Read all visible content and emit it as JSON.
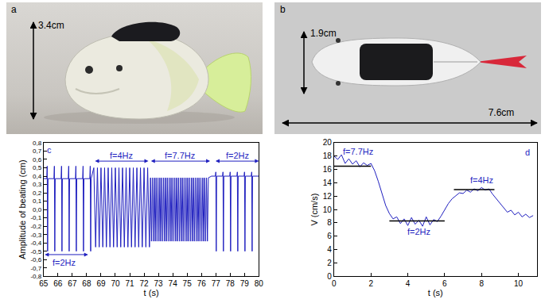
{
  "photos": {
    "a": {
      "label": "a",
      "height": "3.4cm"
    },
    "b": {
      "label": "b",
      "height": "1.9cm",
      "length": "7.6cm"
    }
  },
  "chart_data": [
    {
      "type": "line",
      "xlabel": "t (s)",
      "ylabel": "Amplitude of beating (cm)",
      "color": "#1f1fbf",
      "x": [
        65.0,
        65.22,
        65.25,
        65.28,
        65.31,
        65.72,
        65.75,
        65.78,
        65.81,
        66.22,
        66.25,
        66.28,
        66.31,
        66.72,
        66.75,
        66.78,
        66.81,
        67.22,
        67.25,
        67.28,
        67.31,
        67.72,
        67.75,
        67.78,
        67.81,
        68.22,
        68.25,
        68.28,
        68.31,
        68.5,
        68.625,
        68.75,
        68.875,
        69.0,
        69.125,
        69.25,
        69.375,
        69.5,
        69.625,
        69.75,
        69.875,
        70.0,
        70.125,
        70.25,
        70.375,
        70.5,
        70.625,
        70.75,
        70.875,
        71.0,
        71.125,
        71.25,
        71.375,
        71.5,
        71.625,
        71.75,
        71.875,
        72.0,
        72.125,
        72.25,
        72.375,
        72.45,
        72.515,
        72.58,
        72.645,
        72.71,
        72.775,
        72.84,
        72.905,
        72.97,
        73.035,
        73.1,
        73.165,
        73.23,
        73.295,
        73.36,
        73.425,
        73.49,
        73.555,
        73.62,
        73.685,
        73.75,
        73.815,
        73.88,
        73.945,
        74.01,
        74.075,
        74.14,
        74.205,
        74.27,
        74.335,
        74.4,
        74.465,
        74.53,
        74.595,
        74.66,
        74.725,
        74.79,
        74.855,
        74.92,
        74.985,
        75.05,
        75.115,
        75.18,
        75.245,
        75.31,
        75.375,
        75.44,
        75.505,
        75.57,
        75.635,
        75.7,
        75.765,
        75.83,
        75.895,
        75.96,
        76.025,
        76.09,
        76.155,
        76.22,
        76.285,
        76.35,
        76.415,
        76.48,
        76.7,
        76.97,
        77.0,
        77.03,
        77.06,
        77.47,
        77.5,
        77.53,
        77.56,
        77.97,
        78.0,
        78.03,
        78.06,
        78.47,
        78.5,
        78.53,
        78.56,
        78.97,
        79.0,
        79.03,
        79.06,
        79.47,
        79.5,
        79.53,
        79.56,
        80.0
      ],
      "values": [
        0.37,
        0.37,
        0.52,
        -0.5,
        0.37,
        0.37,
        0.52,
        -0.5,
        0.37,
        0.37,
        0.52,
        -0.5,
        0.37,
        0.37,
        0.52,
        -0.5,
        0.37,
        0.37,
        0.52,
        -0.5,
        0.37,
        0.37,
        0.52,
        -0.5,
        0.37,
        0.37,
        0.52,
        -0.5,
        0.37,
        0.5,
        -0.45,
        0.5,
        -0.45,
        0.5,
        -0.45,
        0.5,
        -0.45,
        0.5,
        -0.45,
        0.5,
        -0.45,
        0.5,
        -0.45,
        0.5,
        -0.45,
        0.5,
        -0.45,
        0.5,
        -0.45,
        0.5,
        -0.45,
        0.5,
        -0.45,
        0.5,
        -0.45,
        0.5,
        -0.45,
        0.5,
        -0.45,
        0.5,
        -0.45,
        0.38,
        -0.38,
        0.38,
        -0.38,
        0.38,
        -0.38,
        0.38,
        -0.38,
        0.38,
        -0.38,
        0.38,
        -0.38,
        0.38,
        -0.38,
        0.38,
        -0.38,
        0.38,
        -0.38,
        0.38,
        -0.38,
        0.38,
        -0.38,
        0.38,
        -0.38,
        0.38,
        -0.38,
        0.38,
        -0.38,
        0.38,
        -0.38,
        0.38,
        -0.38,
        0.38,
        -0.38,
        0.38,
        -0.38,
        0.38,
        -0.38,
        0.38,
        -0.38,
        0.38,
        -0.38,
        0.38,
        -0.38,
        0.38,
        -0.38,
        0.38,
        -0.38,
        0.38,
        -0.38,
        0.38,
        -0.38,
        0.38,
        -0.38,
        0.38,
        -0.38,
        0.38,
        -0.38,
        0.38,
        -0.38,
        0.38,
        -0.38,
        0.38,
        0.4,
        0.4,
        0.45,
        -0.5,
        0.4,
        0.4,
        0.45,
        -0.5,
        0.4,
        0.4,
        0.45,
        -0.5,
        0.4,
        0.4,
        0.45,
        -0.5,
        0.4,
        0.4,
        0.45,
        -0.5,
        0.4,
        0.4,
        0.45,
        -0.5,
        0.4,
        0.4
      ],
      "xlim": [
        65,
        80
      ],
      "xticks": [
        65,
        66,
        67,
        68,
        69,
        70,
        71,
        72,
        73,
        74,
        75,
        76,
        77,
        78,
        79,
        80
      ],
      "ylim": [
        -0.8,
        0.8
      ],
      "yticks": [
        {
          "value": -0.8,
          "label": "-0,8"
        },
        {
          "value": -0.7,
          "label": "-0,7"
        },
        {
          "value": -0.6,
          "label": "-0,6"
        },
        {
          "value": -0.5,
          "label": "-0,5"
        },
        {
          "value": -0.4,
          "label": "-0,4"
        },
        {
          "value": -0.3,
          "label": "-0,3"
        },
        {
          "value": -0.2,
          "label": "-0,2"
        },
        {
          "value": -0.1,
          "label": "-0,1"
        },
        {
          "value": 0,
          "label": "0,0"
        },
        {
          "value": 0.1,
          "label": "0,1"
        },
        {
          "value": 0.2,
          "label": "0,2"
        },
        {
          "value": 0.3,
          "label": "0,3"
        },
        {
          "value": 0.4,
          "label": "0,4"
        },
        {
          "value": 0.5,
          "label": "0,5"
        },
        {
          "value": 0.6,
          "label": "0,6"
        },
        {
          "value": 0.7,
          "label": "0,7"
        },
        {
          "value": 0.8,
          "label": "0,8"
        }
      ],
      "annotations": [
        {
          "text": "c",
          "x": 65.4,
          "y": 0.71
        },
        {
          "text": "f=2Hz",
          "x": 66.4,
          "y": -0.64,
          "span": {
            "x0": 65,
            "x1": 68.1,
            "y": -0.54
          }
        },
        {
          "text": "f=4Hz",
          "x": 70.4,
          "y": 0.65,
          "span": {
            "x0": 68.5,
            "x1": 72.3,
            "y": 0.58
          }
        },
        {
          "text": "f=7.7Hz",
          "x": 74.5,
          "y": 0.65,
          "span": {
            "x0": 72.4,
            "x1": 76.6,
            "y": 0.58
          }
        },
        {
          "text": "f=2Hz",
          "x": 78.5,
          "y": 0.65,
          "span": {
            "x0": 76.9,
            "x1": 80,
            "y": 0.58
          }
        }
      ]
    },
    {
      "type": "line",
      "xlabel": "t (s)",
      "ylabel": "V (cm/s)",
      "color": "#1f1fbf",
      "x": [
        0,
        0.2,
        0.4,
        0.6,
        0.8,
        1.0,
        1.2,
        1.4,
        1.6,
        1.8,
        2.0,
        2.2,
        2.4,
        2.6,
        2.8,
        3.0,
        3.2,
        3.4,
        3.6,
        3.8,
        4.0,
        4.2,
        4.4,
        4.6,
        4.8,
        5.0,
        5.2,
        5.4,
        5.6,
        5.8,
        6.0,
        6.2,
        6.4,
        6.6,
        6.8,
        7.0,
        7.2,
        7.4,
        7.6,
        7.8,
        8.0,
        8.2,
        8.4,
        8.6,
        8.8,
        9.0,
        9.2,
        9.4,
        9.6,
        9.8,
        10.0,
        10.2,
        10.4,
        10.6,
        10.8
      ],
      "values": [
        18.0,
        17.5,
        18.2,
        16.9,
        17.6,
        16.8,
        17.3,
        16.4,
        17.0,
        16.6,
        16.9,
        15.8,
        14.2,
        12.3,
        10.6,
        9.4,
        8.6,
        8.9,
        7.9,
        8.6,
        7.6,
        8.8,
        7.8,
        8.4,
        7.5,
        8.9,
        7.7,
        8.5,
        8.2,
        9.0,
        9.9,
        10.9,
        11.6,
        12.0,
        12.5,
        12.4,
        12.9,
        12.6,
        13.1,
        12.8,
        13.3,
        12.9,
        13.1,
        12.3,
        11.6,
        10.9,
        10.3,
        9.6,
        9.9,
        9.2,
        9.6,
        8.9,
        9.3,
        8.8,
        9.1
      ],
      "fits": [
        {
          "x": [
            0,
            2
          ],
          "y": [
            16.5,
            16.5
          ],
          "color": "#000000"
        },
        {
          "x": [
            3,
            6
          ],
          "y": [
            8.3,
            8.3
          ],
          "color": "#000000"
        },
        {
          "x": [
            6.5,
            8.7
          ],
          "y": [
            13.0,
            13.0
          ],
          "color": "#000000"
        }
      ],
      "xlim": [
        0,
        11
      ],
      "xticks": [
        0,
        2,
        4,
        6,
        8,
        10
      ],
      "ylim": [
        0,
        20
      ],
      "yticks": [
        0,
        2,
        4,
        6,
        8,
        10,
        12,
        14,
        16,
        18,
        20
      ],
      "annotations": [
        {
          "text": "d",
          "x": 10.5,
          "y": 18.6
        },
        {
          "text": "f=7.7Hz",
          "x": 1.3,
          "y": 18.7
        },
        {
          "text": "f=2Hz",
          "x": 4.6,
          "y": 6.7
        },
        {
          "text": "f=4Hz",
          "x": 8.0,
          "y": 14.4
        }
      ]
    }
  ]
}
